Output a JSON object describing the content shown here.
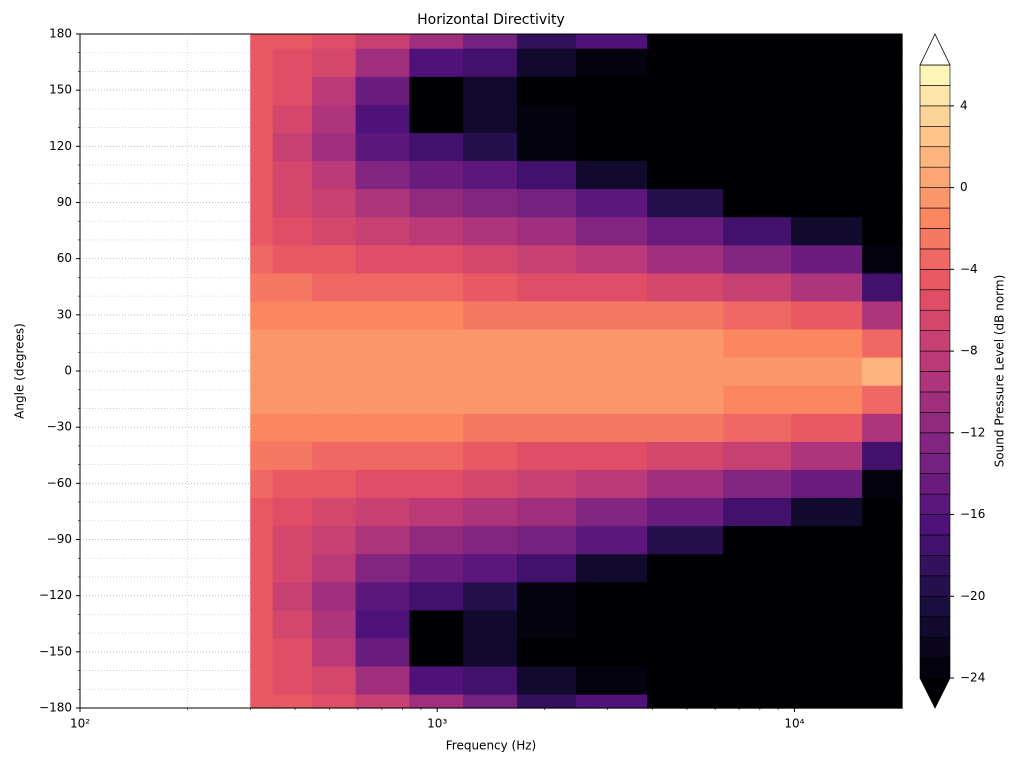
{
  "chart_data": {
    "type": "contour",
    "title": "Horizontal Directivity",
    "xlabel": "Frequency (Hz)",
    "ylabel": "Angle (degrees)",
    "colorbar_label": "Sound Pressure Level (dB norm)",
    "xscale": "log",
    "grid": true,
    "xlim": [
      100,
      20000
    ],
    "ylim": [
      -180,
      180
    ],
    "xticks": [
      {
        "value": 100,
        "label": "10²"
      },
      {
        "value": 1000,
        "label": "10³"
      },
      {
        "value": 10000,
        "label": "10⁴"
      }
    ],
    "yticks": [
      {
        "value": -180,
        "label": "−180"
      },
      {
        "value": -150,
        "label": "−150"
      },
      {
        "value": -120,
        "label": "−120"
      },
      {
        "value": -90,
        "label": "−90"
      },
      {
        "value": -60,
        "label": "−60"
      },
      {
        "value": -30,
        "label": "−30"
      },
      0,
      30,
      60,
      90,
      120,
      150,
      180
    ],
    "zlim": [
      -24,
      6
    ],
    "zticks": [
      {
        "value": -24,
        "label": "−24"
      },
      {
        "value": -20,
        "label": "−20"
      },
      {
        "value": -16,
        "label": "−16"
      },
      {
        "value": -12,
        "label": "−12"
      },
      {
        "value": -8,
        "label": "−8"
      },
      {
        "value": -4,
        "label": "−4"
      },
      0,
      4
    ],
    "x": [
      300,
      400,
      500,
      700,
      1000,
      1400,
      2000,
      3000,
      5000,
      8000,
      12000,
      20000
    ],
    "y": [
      -180,
      -165,
      -150,
      -135,
      -120,
      -105,
      -90,
      -75,
      -60,
      -45,
      -30,
      -15,
      0,
      15,
      30,
      45,
      60,
      75,
      90,
      105,
      120,
      135,
      150,
      165,
      180
    ],
    "z": [
      [
        -5,
        -5,
        -6,
        -8,
        -11,
        -14,
        -19,
        -17,
        -25,
        -30,
        -30,
        -30
      ],
      [
        -5,
        -5.5,
        -7,
        -11,
        -17,
        -18,
        -22,
        -24,
        -30,
        -30,
        -30,
        -30
      ],
      [
        -5,
        -6,
        -9,
        -15,
        -26,
        -22,
        -25,
        -30,
        -30,
        -30,
        -30,
        -30
      ],
      [
        -5,
        -7,
        -10,
        -17,
        -25,
        -22,
        -24,
        -30,
        -30,
        -30,
        -30,
        -30
      ],
      [
        -5,
        -8,
        -11,
        -16,
        -18,
        -20,
        -24,
        -30,
        -30,
        -30,
        -30,
        -30
      ],
      [
        -5,
        -7,
        -9,
        -13,
        -15,
        -16,
        -18,
        -22,
        -30,
        -30,
        -30,
        -30
      ],
      [
        -5,
        -6.5,
        -8,
        -10,
        -12,
        -13,
        -14,
        -16,
        -20,
        -26,
        -30,
        -30
      ],
      [
        -4.5,
        -5.5,
        -6.5,
        -7.5,
        -9,
        -10,
        -11,
        -13,
        -15,
        -18,
        -22,
        -30
      ],
      [
        -4,
        -4.5,
        -5,
        -5.5,
        -6,
        -7,
        -8,
        -9,
        -11,
        -13,
        -15,
        -24
      ],
      [
        -3,
        -3,
        -3.5,
        -4,
        -4,
        -5,
        -5.5,
        -6,
        -7,
        -8,
        -10,
        -18
      ],
      [
        -2,
        -2,
        -2,
        -2,
        -2,
        -2.5,
        -3,
        -3,
        -3,
        -3.5,
        -5,
        -10
      ],
      [
        -1,
        -1,
        -1,
        -1,
        -1,
        -1,
        -1,
        -1,
        -1,
        -1.5,
        -2,
        -4
      ],
      [
        -0.5,
        -0.5,
        -0.5,
        -0.5,
        -0.5,
        -0.5,
        -0.5,
        -0.5,
        -0.5,
        -0.5,
        -0.3,
        1
      ],
      [
        -1,
        -1,
        -1,
        -1,
        -1,
        -1,
        -1,
        -1,
        -1,
        -1.5,
        -2,
        -4
      ],
      [
        -2,
        -2,
        -2,
        -2,
        -2,
        -2.5,
        -3,
        -3,
        -3,
        -3.5,
        -5,
        -10
      ],
      [
        -3,
        -3,
        -3.5,
        -4,
        -4,
        -5,
        -5.5,
        -6,
        -7,
        -8,
        -10,
        -18
      ],
      [
        -4,
        -4.5,
        -5,
        -5.5,
        -6,
        -7,
        -8,
        -9,
        -11,
        -13,
        -15,
        -24
      ],
      [
        -4.5,
        -5.5,
        -6.5,
        -7.5,
        -9,
        -10,
        -11,
        -13,
        -15,
        -18,
        -22,
        -30
      ],
      [
        -5,
        -6.5,
        -8,
        -10,
        -12,
        -13,
        -14,
        -16,
        -20,
        -26,
        -30,
        -30
      ],
      [
        -5,
        -7,
        -9,
        -13,
        -15,
        -16,
        -18,
        -22,
        -30,
        -30,
        -30,
        -30
      ],
      [
        -5,
        -8,
        -11,
        -16,
        -18,
        -20,
        -24,
        -30,
        -30,
        -30,
        -30,
        -30
      ],
      [
        -5,
        -7,
        -10,
        -17,
        -25,
        -22,
        -24,
        -30,
        -30,
        -30,
        -30,
        -30
      ],
      [
        -5,
        -6,
        -9,
        -15,
        -26,
        -22,
        -25,
        -30,
        -30,
        -30,
        -30,
        -30
      ],
      [
        -5,
        -5.5,
        -7,
        -11,
        -17,
        -18,
        -22,
        -24,
        -30,
        -30,
        -30,
        -30
      ],
      [
        -5,
        -5,
        -6,
        -8,
        -11,
        -14,
        -19,
        -17,
        -25,
        -30,
        -30,
        -30
      ]
    ]
  }
}
